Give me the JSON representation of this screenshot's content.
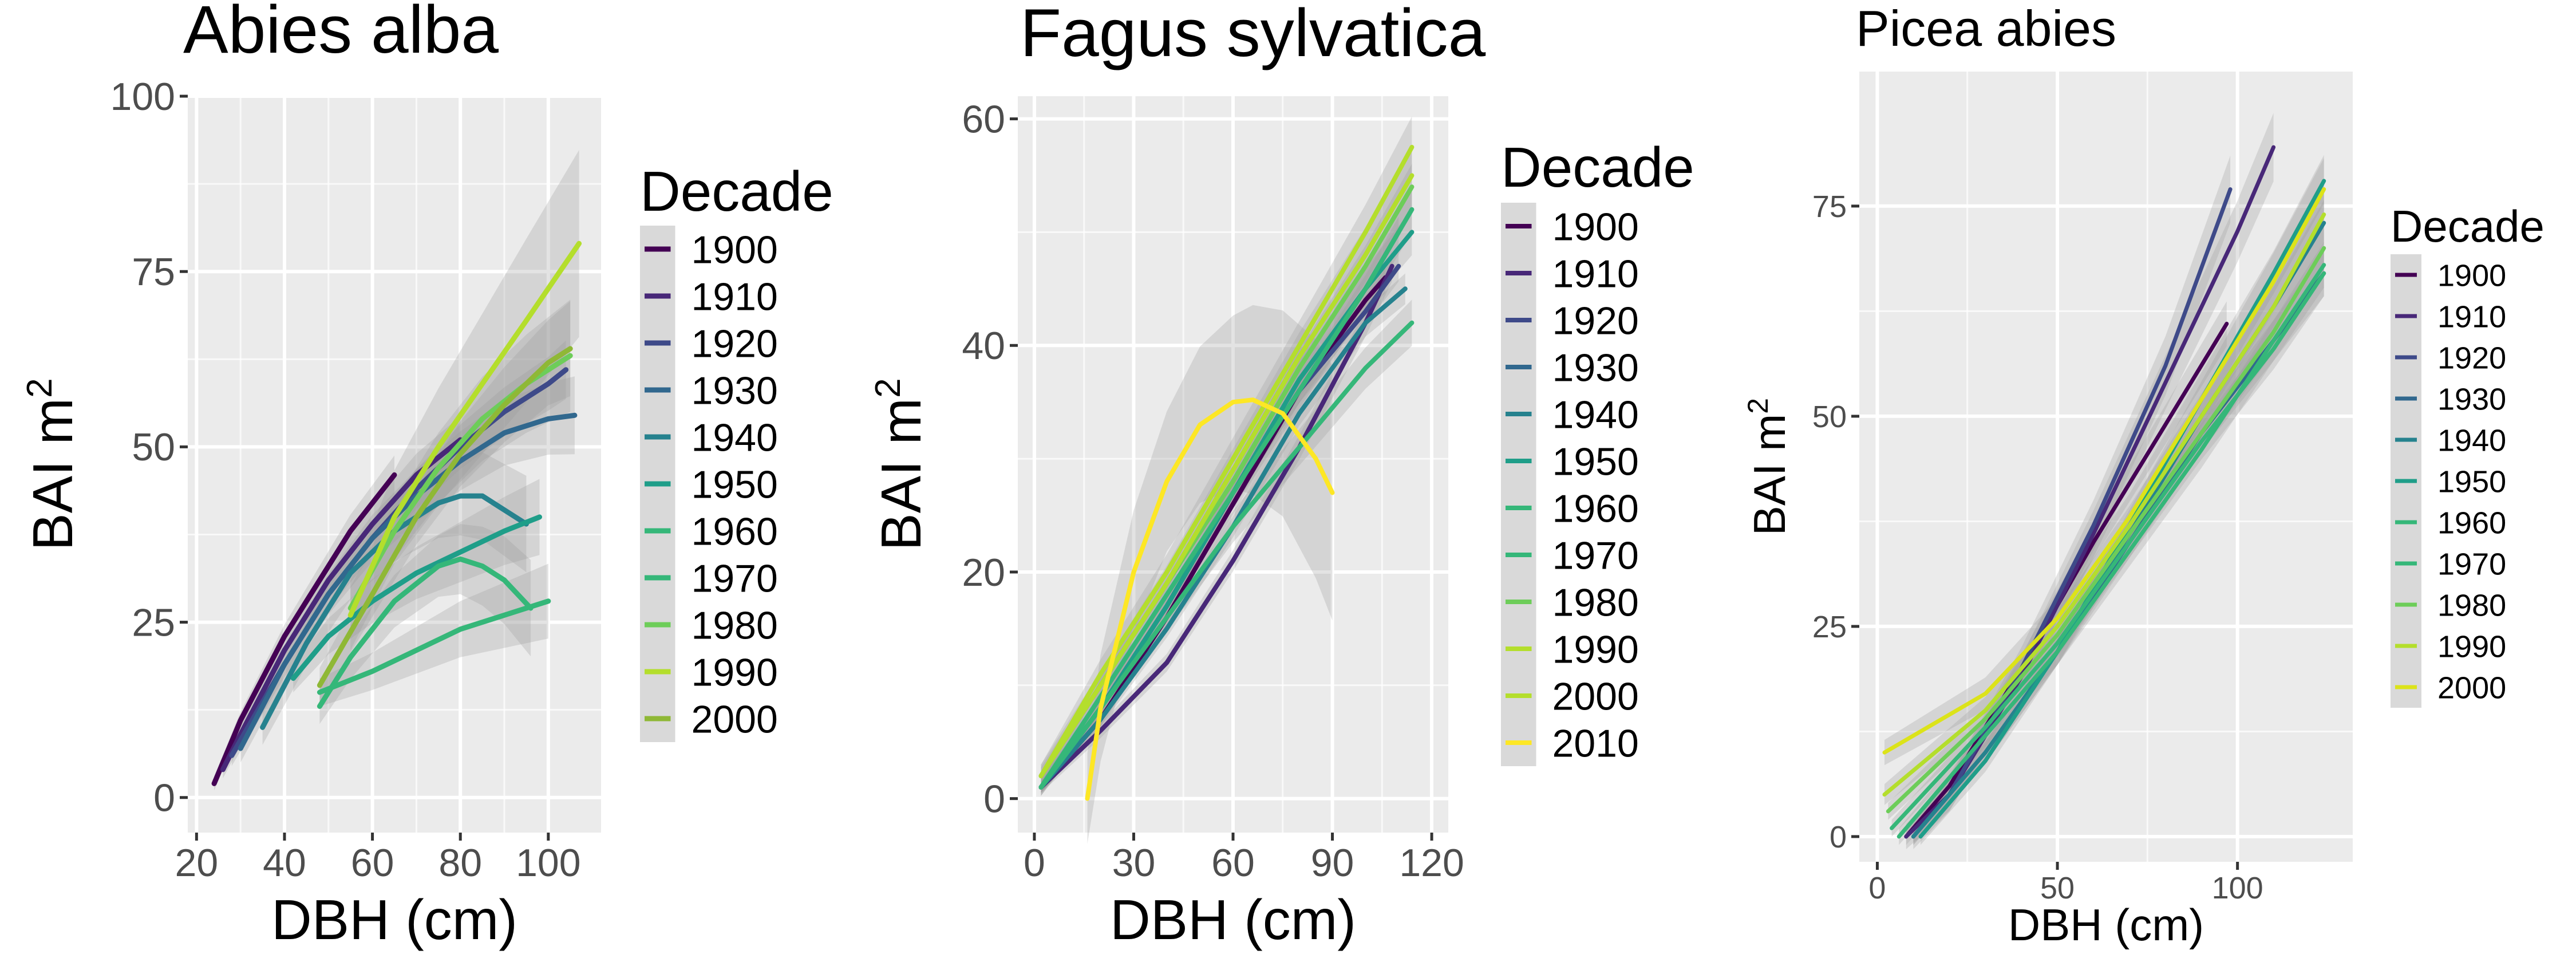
{
  "chart_data": [
    {
      "type": "line",
      "title": "Abies alba",
      "xlabel": "DBH (cm)",
      "ylabel": "BAI m",
      "ylabel_sup": "2",
      "xlim": [
        18,
        112
      ],
      "ylim": [
        -5,
        100
      ],
      "xticks": [
        20,
        40,
        60,
        80,
        100
      ],
      "yticks": [
        0,
        25,
        50,
        75,
        100
      ],
      "grid": true,
      "legend_title": "Decade",
      "legend_position": "right",
      "series": [
        {
          "name": "1900",
          "color": "#440154",
          "x": [
            24,
            30,
            35,
            40,
            45,
            50,
            55,
            60,
            65
          ],
          "y": [
            2,
            11,
            17,
            23,
            28,
            33,
            38,
            42,
            46
          ],
          "band": 2
        },
        {
          "name": "1910",
          "color": "#482878",
          "x": [
            26,
            30,
            40,
            50,
            60,
            70,
            80
          ],
          "y": [
            4,
            9,
            21,
            31,
            39,
            46,
            51
          ],
          "band": 2.5
        },
        {
          "name": "1920",
          "color": "#3E4A89",
          "x": [
            28,
            40,
            50,
            60,
            70,
            80,
            90,
            100,
            104
          ],
          "y": [
            6,
            19,
            29,
            37,
            44,
            50,
            55,
            59,
            61
          ],
          "band": 3
        },
        {
          "name": "1930",
          "color": "#31688E",
          "x": [
            30,
            40,
            50,
            60,
            70,
            80,
            90,
            100,
            106
          ],
          "y": [
            7,
            19,
            29,
            37,
            43,
            48,
            52,
            54,
            54.5
          ],
          "band": 4
        },
        {
          "name": "1940",
          "color": "#26828E",
          "x": [
            35,
            45,
            55,
            65,
            75,
            80,
            85,
            95
          ],
          "y": [
            10,
            22,
            32,
            38,
            42,
            43,
            43,
            39
          ],
          "band": 5
        },
        {
          "name": "1950",
          "color": "#1F9E89",
          "x": [
            42,
            50,
            60,
            70,
            80,
            90,
            98
          ],
          "y": [
            17,
            23,
            28,
            32,
            35,
            38,
            40
          ],
          "band": 4
        },
        {
          "name": "1960",
          "color": "#35B779",
          "x": [
            48,
            55,
            65,
            75,
            80,
            85,
            90,
            96
          ],
          "y": [
            13,
            20,
            28,
            33,
            34,
            33,
            31,
            27
          ],
          "band": 5
        },
        {
          "name": "1970",
          "color": "#35B779",
          "x": [
            48,
            60,
            70,
            80,
            90,
            100
          ],
          "y": [
            15,
            18,
            21,
            24,
            26,
            28
          ],
          "band": 4
        },
        {
          "name": "1980",
          "color": "#6DCD59",
          "x": [
            55,
            65,
            75,
            85,
            95,
            105
          ],
          "y": [
            27,
            38,
            47,
            54,
            59,
            63
          ],
          "band": 6
        },
        {
          "name": "1990",
          "color": "#B4DE2C",
          "x": [
            55,
            65,
            75,
            85,
            95,
            107
          ],
          "y": [
            26,
            40,
            50,
            59,
            68,
            79
          ],
          "band": 10
        },
        {
          "name": "2000",
          "color": "#8FB836",
          "x": [
            48,
            60,
            70,
            80,
            90,
            100,
            105
          ],
          "y": [
            16,
            29,
            40,
            49,
            56,
            62,
            64
          ],
          "band": 5
        }
      ]
    },
    {
      "type": "line",
      "title": "Fagus sylvatica",
      "xlabel": "DBH (cm)",
      "ylabel": "BAI m",
      "ylabel_sup": "2",
      "xlim": [
        -5,
        125
      ],
      "ylim": [
        -3,
        62
      ],
      "xticks": [
        0,
        30,
        60,
        90,
        120
      ],
      "yticks": [
        0,
        20,
        40,
        60
      ],
      "grid": true,
      "legend_title": "Decade",
      "legend_position": "right",
      "series": [
        {
          "name": "1900",
          "color": "#440154",
          "x": [
            2,
            20,
            40,
            60,
            80,
            100,
            106
          ],
          "y": [
            1,
            7,
            16,
            26,
            36,
            44,
            46
          ],
          "band": 1
        },
        {
          "name": "1910",
          "color": "#482878",
          "x": [
            2,
            20,
            40,
            60,
            80,
            100,
            108
          ],
          "y": [
            1,
            6,
            12,
            21,
            31,
            42,
            47
          ],
          "band": 1
        },
        {
          "name": "1920",
          "color": "#3E4A89",
          "x": [
            2,
            20,
            40,
            60,
            80,
            100,
            110
          ],
          "y": [
            1,
            8,
            17,
            27,
            36,
            43,
            47
          ],
          "band": 1
        },
        {
          "name": "1930",
          "color": "#31688E",
          "x": [
            2,
            20,
            40,
            60,
            80,
            100,
            110
          ],
          "y": [
            1,
            8,
            17,
            27,
            36,
            45,
            50
          ],
          "band": 1
        },
        {
          "name": "1940",
          "color": "#26828E",
          "x": [
            2,
            20,
            40,
            60,
            80,
            100,
            112
          ],
          "y": [
            1,
            7,
            15,
            24,
            34,
            42,
            45
          ],
          "band": 1
        },
        {
          "name": "1950",
          "color": "#1F9E89",
          "x": [
            2,
            20,
            40,
            60,
            80,
            100,
            114
          ],
          "y": [
            1,
            8,
            17,
            27,
            37,
            45,
            50
          ],
          "band": 1.5
        },
        {
          "name": "1960",
          "color": "#35B779",
          "x": [
            2,
            20,
            40,
            60,
            80,
            100,
            114
          ],
          "y": [
            1,
            8,
            16,
            24,
            31,
            38,
            42
          ],
          "band": 1.5
        },
        {
          "name": "1970",
          "color": "#35B779",
          "x": [
            2,
            20,
            40,
            60,
            80,
            100,
            114
          ],
          "y": [
            1,
            9,
            18,
            27,
            36,
            45,
            52
          ],
          "band": 1.5
        },
        {
          "name": "1980",
          "color": "#6DCD59",
          "x": [
            2,
            20,
            40,
            60,
            80,
            100,
            114
          ],
          "y": [
            2,
            10,
            19,
            28,
            38,
            47,
            54
          ],
          "band": 1.5
        },
        {
          "name": "1990",
          "color": "#B4DE2C",
          "x": [
            2,
            20,
            40,
            60,
            80,
            100,
            114
          ],
          "y": [
            2,
            10,
            19,
            29,
            39,
            48,
            55
          ],
          "band": 2
        },
        {
          "name": "2000",
          "color": "#B4DE2C",
          "x": [
            2,
            20,
            40,
            60,
            80,
            100,
            114
          ],
          "y": [
            2,
            11,
            20,
            30,
            40,
            50,
            57.5
          ],
          "band": 2
        },
        {
          "name": "2010",
          "color": "#FDE725",
          "x": [
            16,
            20,
            30,
            40,
            50,
            60,
            66,
            75,
            80,
            85,
            90
          ],
          "y": [
            0,
            8,
            20,
            28,
            33,
            35,
            35.2,
            34,
            32,
            30,
            27
          ],
          "band": 8
        }
      ]
    },
    {
      "type": "line",
      "title": "Picea abies",
      "xlabel": "DBH (cm)",
      "ylabel": "BAI m",
      "ylabel_sup": "2",
      "xlim": [
        -5,
        132
      ],
      "ylim": [
        -3,
        91
      ],
      "xticks": [
        0,
        50,
        100
      ],
      "yticks": [
        0,
        25,
        50,
        75
      ],
      "grid": true,
      "legend_title": "Decade",
      "legend_position": "right",
      "series": [
        {
          "name": "1900",
          "color": "#440154",
          "x": [
            8,
            20,
            40,
            60,
            80,
            97
          ],
          "y": [
            0,
            6,
            20,
            35,
            49,
            61
          ],
          "band": 2
        },
        {
          "name": "1910",
          "color": "#482878",
          "x": [
            8,
            20,
            40,
            60,
            80,
            100,
            110
          ],
          "y": [
            0,
            5,
            19,
            36,
            54,
            72,
            82
          ],
          "band": 3
        },
        {
          "name": "1920",
          "color": "#3E4A89",
          "x": [
            10,
            20,
            40,
            60,
            80,
            98
          ],
          "y": [
            0,
            5,
            20,
            37,
            56,
            77
          ],
          "band": 3
        },
        {
          "name": "1930",
          "color": "#31688E",
          "x": [
            10,
            30,
            50,
            70,
            90,
            110,
            124
          ],
          "y": [
            0,
            10,
            22,
            35,
            48,
            59,
            67
          ],
          "band": 2
        },
        {
          "name": "1940",
          "color": "#26828E",
          "x": [
            10,
            30,
            50,
            70,
            90,
            110,
            124
          ],
          "y": [
            0,
            10,
            22,
            36,
            50,
            63,
            73
          ],
          "band": 2
        },
        {
          "name": "1950",
          "color": "#1F9E89",
          "x": [
            12,
            30,
            50,
            70,
            90,
            110,
            124
          ],
          "y": [
            0,
            9,
            22,
            37,
            52,
            67,
            78
          ],
          "band": 2
        },
        {
          "name": "1960",
          "color": "#35B779",
          "x": [
            6,
            30,
            50,
            70,
            90,
            110,
            124
          ],
          "y": [
            0,
            12,
            22,
            34,
            46,
            59,
            68
          ],
          "band": 2
        },
        {
          "name": "1970",
          "color": "#35B779",
          "x": [
            4,
            30,
            50,
            70,
            90,
            110,
            124
          ],
          "y": [
            1,
            13,
            23,
            35,
            47,
            58,
            67
          ],
          "band": 2
        },
        {
          "name": "1980",
          "color": "#6DCD59",
          "x": [
            3,
            30,
            50,
            70,
            90,
            110,
            124
          ],
          "y": [
            3,
            14,
            24,
            36,
            48,
            60,
            70
          ],
          "band": 2
        },
        {
          "name": "1990",
          "color": "#B4DE2C",
          "x": [
            2,
            30,
            50,
            70,
            90,
            110,
            124
          ],
          "y": [
            5,
            15,
            25,
            37,
            50,
            63,
            74
          ],
          "band": 2.5
        },
        {
          "name": "2000",
          "color": "#DCE319",
          "x": [
            2,
            30,
            50,
            70,
            90,
            110,
            124
          ],
          "y": [
            10,
            17,
            26,
            38,
            52,
            66,
            77
          ],
          "band": 3
        }
      ]
    }
  ]
}
